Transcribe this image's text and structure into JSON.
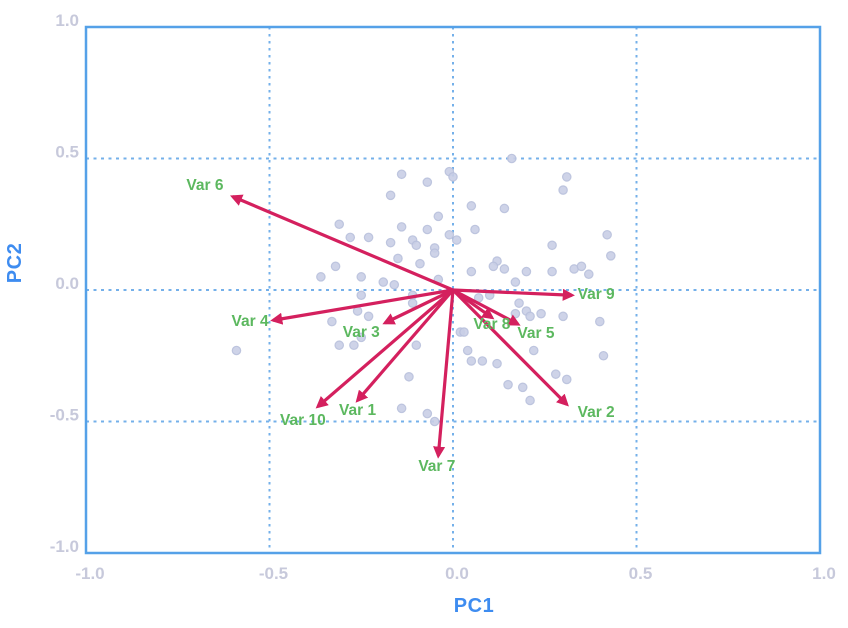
{
  "colors": {
    "frame": "#55a1e8",
    "grid": "#74b0ea",
    "tick": "#c7c9db",
    "axis_title": "#3e8cf0",
    "arrow": "#d4205e",
    "loading_label": "#5cb85f",
    "point_fill": "#c9cee6",
    "point_stroke": "#b6bedb"
  },
  "chart_data": {
    "type": "scatter",
    "subtype": "pca-biplot",
    "title": "",
    "xlabel": "PC1",
    "ylabel": "PC2",
    "xlim": [
      -1,
      1
    ],
    "ylim": [
      -1,
      1
    ],
    "grid": "dashed",
    "gridline_values": [
      -0.5,
      0,
      0.5
    ],
    "xtick_labels": [
      "-1.0",
      "-0.5",
      "0.0",
      "0.5",
      "1.0"
    ],
    "ytick_labels": [
      "-1.0",
      "-0.5",
      "0.0",
      "0.5",
      "1.0"
    ],
    "xtick_values": [
      -1,
      -0.5,
      0,
      0.5,
      1
    ],
    "ytick_values": [
      -1,
      -0.5,
      0,
      0.5,
      1
    ],
    "legend": "none",
    "points": [
      [
        0.16,
        0.5
      ],
      [
        -0.14,
        0.44
      ],
      [
        -0.01,
        0.45
      ],
      [
        0.0,
        0.43
      ],
      [
        -0.07,
        0.41
      ],
      [
        0.31,
        0.43
      ],
      [
        0.3,
        0.38
      ],
      [
        -0.17,
        0.36
      ],
      [
        0.05,
        0.32
      ],
      [
        0.14,
        0.31
      ],
      [
        -0.31,
        0.25
      ],
      [
        -0.04,
        0.28
      ],
      [
        -0.14,
        0.24
      ],
      [
        -0.28,
        0.2
      ],
      [
        -0.07,
        0.23
      ],
      [
        0.06,
        0.23
      ],
      [
        -0.23,
        0.2
      ],
      [
        -0.01,
        0.21
      ],
      [
        -0.17,
        0.18
      ],
      [
        -0.11,
        0.19
      ],
      [
        -0.1,
        0.17
      ],
      [
        0.01,
        0.19
      ],
      [
        -0.05,
        0.16
      ],
      [
        -0.05,
        0.14
      ],
      [
        -0.15,
        0.12
      ],
      [
        0.27,
        0.17
      ],
      [
        -0.09,
        0.1
      ],
      [
        0.12,
        0.11
      ],
      [
        0.11,
        0.09
      ],
      [
        0.14,
        0.08
      ],
      [
        -0.36,
        0.05
      ],
      [
        -0.32,
        0.09
      ],
      [
        -0.25,
        0.05
      ],
      [
        -0.19,
        0.03
      ],
      [
        -0.04,
        0.04
      ],
      [
        0.05,
        0.07
      ],
      [
        0.2,
        0.07
      ],
      [
        0.17,
        0.03
      ],
      [
        0.33,
        0.08
      ],
      [
        0.42,
        0.21
      ],
      [
        0.43,
        0.13
      ],
      [
        0.35,
        0.09
      ],
      [
        0.37,
        0.06
      ],
      [
        -0.16,
        0.02
      ],
      [
        -0.11,
        -0.02
      ],
      [
        0.27,
        0.07
      ],
      [
        -0.59,
        -0.23
      ],
      [
        -0.33,
        -0.12
      ],
      [
        -0.25,
        -0.02
      ],
      [
        -0.26,
        -0.08
      ],
      [
        -0.23,
        -0.1
      ],
      [
        -0.25,
        -0.18
      ],
      [
        -0.31,
        -0.21
      ],
      [
        -0.27,
        -0.21
      ],
      [
        -0.11,
        -0.05
      ],
      [
        -0.1,
        -0.21
      ],
      [
        -0.12,
        -0.33
      ],
      [
        -0.14,
        -0.45
      ],
      [
        -0.07,
        -0.47
      ],
      [
        0.07,
        -0.03
      ],
      [
        0.1,
        -0.02
      ],
      [
        0.18,
        -0.05
      ],
      [
        0.2,
        -0.08
      ],
      [
        0.21,
        -0.1
      ],
      [
        0.24,
        -0.09
      ],
      [
        0.17,
        -0.09
      ],
      [
        0.3,
        -0.1
      ],
      [
        0.02,
        -0.16
      ],
      [
        0.03,
        -0.16
      ],
      [
        0.4,
        -0.12
      ],
      [
        0.04,
        -0.23
      ],
      [
        0.05,
        -0.27
      ],
      [
        0.08,
        -0.27
      ],
      [
        0.12,
        -0.28
      ],
      [
        0.22,
        -0.23
      ],
      [
        0.41,
        -0.25
      ],
      [
        0.28,
        -0.32
      ],
      [
        0.31,
        -0.34
      ],
      [
        0.15,
        -0.36
      ],
      [
        0.19,
        -0.37
      ],
      [
        0.21,
        -0.42
      ],
      [
        -0.05,
        -0.5
      ]
    ],
    "loadings": [
      {
        "label": "Var 1",
        "x": -0.26,
        "y": -0.42,
        "label_x": -0.26,
        "label_y": -0.455
      },
      {
        "label": "Var 2",
        "x": 0.31,
        "y": -0.435,
        "label_x": 0.39,
        "label_y": -0.462
      },
      {
        "label": "Var 3",
        "x": -0.185,
        "y": -0.125,
        "label_x": -0.25,
        "label_y": -0.158
      },
      {
        "label": "Var 4",
        "x": -0.49,
        "y": -0.115,
        "label_x": -0.553,
        "label_y": -0.116
      },
      {
        "label": "Var 5",
        "x": 0.177,
        "y": -0.13,
        "label_x": 0.226,
        "label_y": -0.162
      },
      {
        "label": "Var 6",
        "x": -0.6,
        "y": 0.355,
        "label_x": -0.676,
        "label_y": 0.402
      },
      {
        "label": "Var 7",
        "x": -0.04,
        "y": -0.63,
        "label_x": -0.044,
        "label_y": -0.667
      },
      {
        "label": "Var 8",
        "x": 0.106,
        "y": -0.105,
        "label_x": 0.106,
        "label_y": -0.127
      },
      {
        "label": "Var 9",
        "x": 0.324,
        "y": -0.02,
        "label_x": 0.39,
        "label_y": -0.013
      },
      {
        "label": "Var 10",
        "x": -0.368,
        "y": -0.443,
        "label_x": -0.409,
        "label_y": -0.492
      }
    ]
  }
}
